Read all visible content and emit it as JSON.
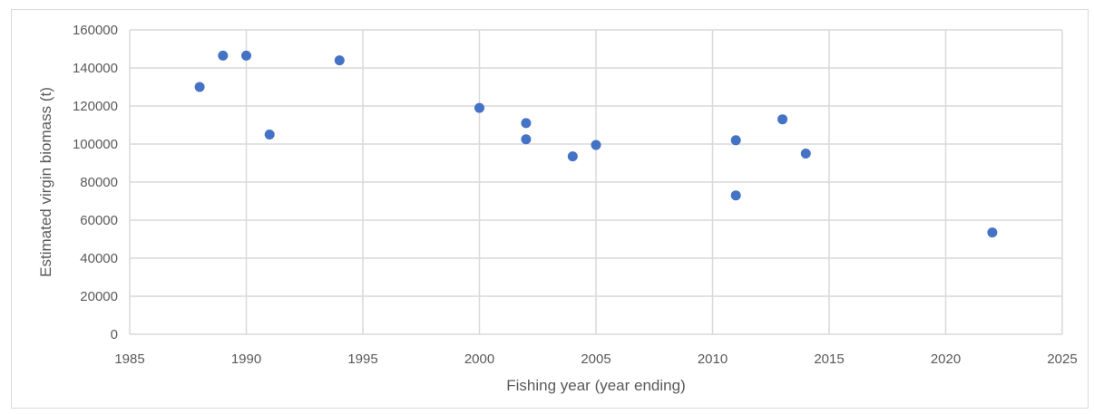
{
  "chart_data": {
    "type": "scatter",
    "xlabel": "Fishing year (year ending)",
    "ylabel": "Estimated virgin biomass (t)",
    "xlim": [
      1985,
      2025
    ],
    "ylim": [
      0,
      160000
    ],
    "x_ticks": [
      1985,
      1990,
      1995,
      2000,
      2005,
      2010,
      2015,
      2020,
      2025
    ],
    "y_ticks": [
      0,
      20000,
      40000,
      60000,
      80000,
      100000,
      120000,
      140000,
      160000
    ],
    "grid": true,
    "marker_color": "#4472c4",
    "series": [
      {
        "points": [
          {
            "x": 1988,
            "y": 130000
          },
          {
            "x": 1989,
            "y": 146500
          },
          {
            "x": 1990,
            "y": 146500
          },
          {
            "x": 1991,
            "y": 105000
          },
          {
            "x": 1994,
            "y": 144000
          },
          {
            "x": 2000,
            "y": 119000
          },
          {
            "x": 2002,
            "y": 111000
          },
          {
            "x": 2002,
            "y": 102500
          },
          {
            "x": 2004,
            "y": 93500
          },
          {
            "x": 2005,
            "y": 99500
          },
          {
            "x": 2011,
            "y": 102000
          },
          {
            "x": 2011,
            "y": 73000
          },
          {
            "x": 2013,
            "y": 113000
          },
          {
            "x": 2014,
            "y": 95000
          },
          {
            "x": 2022,
            "y": 53500
          }
        ]
      }
    ]
  }
}
